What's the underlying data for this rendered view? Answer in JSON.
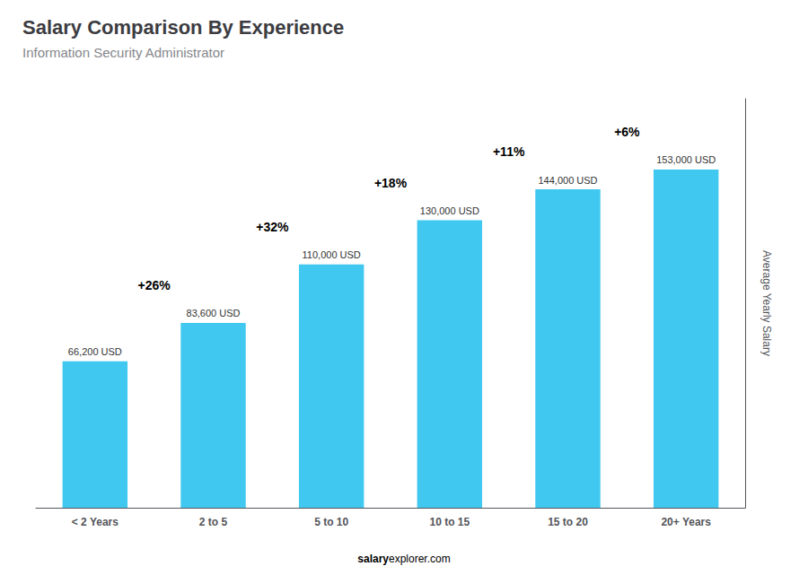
{
  "chart_data": {
    "type": "bar",
    "title": "Salary Comparison By Experience",
    "subtitle": "Information Security Administrator",
    "ylabel": "Average Yearly Salary",
    "categories": [
      "< 2 Years",
      "2 to 5",
      "5 to 10",
      "10 to 15",
      "15 to 20",
      "20+ Years"
    ],
    "values": [
      66200,
      83600,
      110000,
      130000,
      144000,
      153000
    ],
    "value_labels": [
      "66,200 USD",
      "83,600 USD",
      "110,000 USD",
      "130,000 USD",
      "144,000 USD",
      "153,000 USD"
    ],
    "data_labels": true,
    "annotations": [
      "+26%",
      "+32%",
      "+18%",
      "+11%",
      "+6%"
    ],
    "footer": [
      "salary",
      "explorer.com"
    ],
    "color": "#40C8F0",
    "ylim": [
      0,
      185000
    ],
    "grid": false,
    "tick_labels": "x"
  }
}
